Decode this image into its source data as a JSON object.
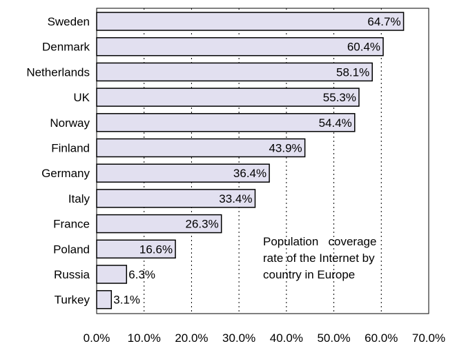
{
  "chart_data": {
    "type": "bar",
    "orientation": "horizontal",
    "categories": [
      "Sweden",
      "Denmark",
      "Netherlands",
      "UK",
      "Norway",
      "Finland",
      "Germany",
      "Italy",
      "France",
      "Poland",
      "Russia",
      "Turkey"
    ],
    "values": [
      64.7,
      60.4,
      58.1,
      55.3,
      54.4,
      43.9,
      36.4,
      33.4,
      26.3,
      16.6,
      6.3,
      3.1
    ],
    "value_labels": [
      "64.7%",
      "60.4%",
      "58.1%",
      "55.3%",
      "54.4%",
      "43.9%",
      "36.4%",
      "33.4%",
      "26.3%",
      "16.6%",
      "6.3%",
      "3.1%"
    ],
    "x_ticks": [
      0,
      10,
      20,
      30,
      40,
      50,
      60,
      70
    ],
    "x_tick_labels": [
      "0.0%",
      "10.0%",
      "20.0%",
      "30.0%",
      "40.0%",
      "50.0%",
      "60.0%",
      "70.0%"
    ],
    "xlim": [
      0,
      70
    ],
    "title": "",
    "xlabel": "",
    "ylabel": "",
    "annotation": [
      "Population   coverage",
      "rate of the Internet by",
      "country in Europe"
    ],
    "grid": "vertical dotted",
    "legend": "none",
    "colors": {
      "bar_fill": "#e2e0f0",
      "bar_stroke": "#000000",
      "grid": "#000000",
      "frame": "#000000"
    }
  }
}
